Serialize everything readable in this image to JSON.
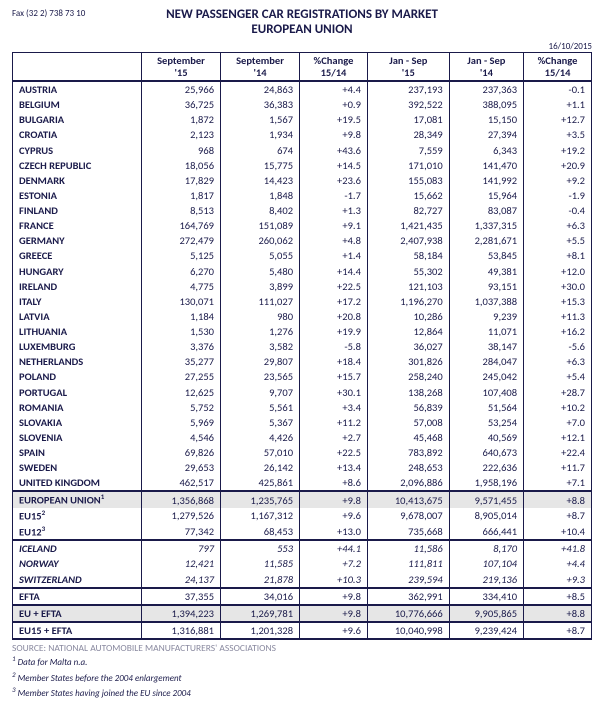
{
  "fax": "Fax (32 2) 738 73 10",
  "title": "NEW PASSENGER CAR REGISTRATIONS BY MARKET",
  "subtitle": "EUROPEAN UNION",
  "date": "16/10/2015",
  "columns": [
    {
      "l1": "September",
      "l2": "'15"
    },
    {
      "l1": "September",
      "l2": "'14"
    },
    {
      "l1": "%Change",
      "l2": "15/14"
    },
    {
      "l1": "Jan - Sep",
      "l2": "'15"
    },
    {
      "l1": "Jan - Sep",
      "l2": "'14"
    },
    {
      "l1": "%Change",
      "l2": "15/14"
    }
  ],
  "rows": [
    {
      "label": "AUSTRIA",
      "cells": [
        "25,966",
        "24,863",
        "+4.4",
        "237,193",
        "237,363",
        "-0.1"
      ]
    },
    {
      "label": "BELGIUM",
      "cells": [
        "36,725",
        "36,383",
        "+0.9",
        "392,522",
        "388,095",
        "+1.1"
      ]
    },
    {
      "label": "BULGARIA",
      "cells": [
        "1,872",
        "1,567",
        "+19.5",
        "17,081",
        "15,150",
        "+12.7"
      ]
    },
    {
      "label": "CROATIA",
      "cells": [
        "2,123",
        "1,934",
        "+9.8",
        "28,349",
        "27,394",
        "+3.5"
      ]
    },
    {
      "label": "CYPRUS",
      "cells": [
        "968",
        "674",
        "+43.6",
        "7,559",
        "6,343",
        "+19.2"
      ]
    },
    {
      "label": "CZECH REPUBLIC",
      "cells": [
        "18,056",
        "15,775",
        "+14.5",
        "171,010",
        "141,470",
        "+20.9"
      ]
    },
    {
      "label": "DENMARK",
      "cells": [
        "17,829",
        "14,423",
        "+23.6",
        "155,083",
        "141,992",
        "+9.2"
      ]
    },
    {
      "label": "ESTONIA",
      "cells": [
        "1,817",
        "1,848",
        "-1.7",
        "15,662",
        "15,964",
        "-1.9"
      ]
    },
    {
      "label": "FINLAND",
      "cells": [
        "8,513",
        "8,402",
        "+1.3",
        "82,727",
        "83,087",
        "-0.4"
      ]
    },
    {
      "label": "FRANCE",
      "cells": [
        "164,769",
        "151,089",
        "+9.1",
        "1,421,435",
        "1,337,315",
        "+6.3"
      ]
    },
    {
      "label": "GERMANY",
      "cells": [
        "272,479",
        "260,062",
        "+4.8",
        "2,407,938",
        "2,281,671",
        "+5.5"
      ]
    },
    {
      "label": "GREECE",
      "cells": [
        "5,125",
        "5,055",
        "+1.4",
        "58,184",
        "53,845",
        "+8.1"
      ]
    },
    {
      "label": "HUNGARY",
      "cells": [
        "6,270",
        "5,480",
        "+14.4",
        "55,302",
        "49,381",
        "+12.0"
      ]
    },
    {
      "label": "IRELAND",
      "cells": [
        "4,775",
        "3,899",
        "+22.5",
        "121,103",
        "93,151",
        "+30.0"
      ]
    },
    {
      "label": "ITALY",
      "cells": [
        "130,071",
        "111,027",
        "+17.2",
        "1,196,270",
        "1,037,388",
        "+15.3"
      ]
    },
    {
      "label": "LATVIA",
      "cells": [
        "1,184",
        "980",
        "+20.8",
        "10,286",
        "9,239",
        "+11.3"
      ]
    },
    {
      "label": "LITHUANIA",
      "cells": [
        "1,530",
        "1,276",
        "+19.9",
        "12,864",
        "11,071",
        "+16.2"
      ]
    },
    {
      "label": "LUXEMBURG",
      "cells": [
        "3,376",
        "3,582",
        "-5.8",
        "36,027",
        "38,147",
        "-5.6"
      ]
    },
    {
      "label": "NETHERLANDS",
      "cells": [
        "35,277",
        "29,807",
        "+18.4",
        "301,826",
        "284,047",
        "+6.3"
      ]
    },
    {
      "label": "POLAND",
      "cells": [
        "27,255",
        "23,565",
        "+15.7",
        "258,240",
        "245,042",
        "+5.4"
      ]
    },
    {
      "label": "PORTUGAL",
      "cells": [
        "12,625",
        "9,707",
        "+30.1",
        "138,268",
        "107,408",
        "+28.7"
      ]
    },
    {
      "label": "ROMANIA",
      "cells": [
        "5,752",
        "5,561",
        "+3.4",
        "56,839",
        "51,564",
        "+10.2"
      ]
    },
    {
      "label": "SLOVAKIA",
      "cells": [
        "5,969",
        "5,367",
        "+11.2",
        "57,008",
        "53,254",
        "+7.0"
      ]
    },
    {
      "label": "SLOVENIA",
      "cells": [
        "4,546",
        "4,426",
        "+2.7",
        "45,468",
        "40,569",
        "+12.1"
      ]
    },
    {
      "label": "SPAIN",
      "cells": [
        "69,826",
        "57,010",
        "+22.5",
        "783,892",
        "640,673",
        "+22.4"
      ]
    },
    {
      "label": "SWEDEN",
      "cells": [
        "29,653",
        "26,142",
        "+13.4",
        "248,653",
        "222,636",
        "+11.7"
      ]
    },
    {
      "label": "UNITED KINGDOM",
      "cells": [
        "462,517",
        "425,861",
        "+8.6",
        "2,096,886",
        "1,958,196",
        "+7.1"
      ]
    }
  ],
  "summary": [
    {
      "label": "EUROPEAN UNION",
      "sup": "1",
      "cells": [
        "1,356,868",
        "1,235,765",
        "+9.8",
        "10,413,675",
        "9,571,455",
        "+8.8"
      ],
      "shaded": true,
      "top": true
    },
    {
      "label": "EU15",
      "sup": "2",
      "cells": [
        "1,279,526",
        "1,167,312",
        "+9.6",
        "9,678,007",
        "8,905,014",
        "+8.7"
      ]
    },
    {
      "label": "EU12",
      "sup": "3",
      "cells": [
        "77,342",
        "68,453",
        "+13.0",
        "735,668",
        "666,441",
        "+10.4"
      ],
      "bottom": true
    }
  ],
  "efta_rows": [
    {
      "label": "ICELAND",
      "cells": [
        "797",
        "553",
        "+44.1",
        "11,586",
        "8,170",
        "+41.8"
      ],
      "italic": true,
      "top": true
    },
    {
      "label": "NORWAY",
      "cells": [
        "12,421",
        "11,585",
        "+7.2",
        "111,811",
        "107,104",
        "+4.4"
      ],
      "italic": true
    },
    {
      "label": "SWITZERLAND",
      "cells": [
        "24,137",
        "21,878",
        "+10.3",
        "239,594",
        "219,136",
        "+9.3"
      ],
      "italic": true,
      "bottom": true
    }
  ],
  "efta_summary": [
    {
      "label": "EFTA",
      "cells": [
        "37,355",
        "34,016",
        "+9.8",
        "362,991",
        "334,410",
        "+8.5"
      ],
      "top": true,
      "bottom": true
    },
    {
      "label": "EU + EFTA",
      "cells": [
        "1,394,223",
        "1,269,781",
        "+9.8",
        "10,776,666",
        "9,905,865",
        "+8.8"
      ],
      "shaded": true,
      "top": true,
      "bottom": true
    },
    {
      "label": "EU15 + EFTA",
      "cells": [
        "1,316,881",
        "1,201,328",
        "+9.6",
        "10,040,998",
        "9,239,424",
        "+8.7"
      ],
      "top": true,
      "bottom": true
    }
  ],
  "source": "SOURCE: NATIONAL AUTOMOBILE MANUFACTURERS' ASSOCIATIONS",
  "footnotes": [
    {
      "n": "1",
      "text": "Data for Malta n.a."
    },
    {
      "n": "2",
      "text": "Member States before the 2004 enlargement"
    },
    {
      "n": "3",
      "text": "Member States having joined the EU since 2004"
    }
  ]
}
